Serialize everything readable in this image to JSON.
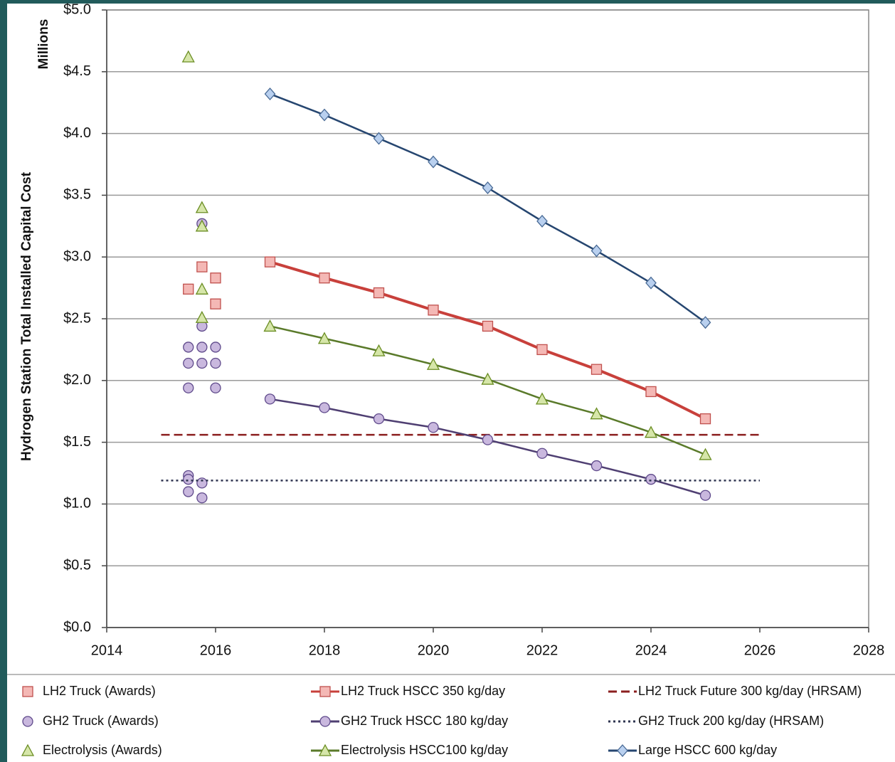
{
  "chart_data": {
    "type": "line",
    "y_label": "Hydrogen Station Total Installed Capital Cost",
    "y_unit": "Millions",
    "xlim": [
      2014,
      2028
    ],
    "xticks": [
      2014,
      2016,
      2018,
      2020,
      2022,
      2024,
      2026,
      2028
    ],
    "ylim": [
      0,
      5
    ],
    "yticks": [
      {
        "value": 0,
        "label": "$0.0"
      },
      {
        "value": 0.5,
        "label": "$0.5"
      },
      {
        "value": 1,
        "label": "$1.0"
      },
      {
        "value": 1.5,
        "label": "$1.5"
      },
      {
        "value": 2,
        "label": "$2.0"
      },
      {
        "value": 2.5,
        "label": "$2.5"
      },
      {
        "value": 3,
        "label": "$3.0"
      },
      {
        "value": 3.5,
        "label": "$3.5"
      },
      {
        "value": 4,
        "label": "$4.0"
      },
      {
        "value": 4.5,
        "label": "$4.5"
      },
      {
        "value": 5,
        "label": "$5.0"
      }
    ],
    "grid": true,
    "legend": "bottom",
    "series": [
      {
        "name": "LH2 Truck (Awards)",
        "line": "none",
        "marker": "square",
        "color": "#f4b8b5",
        "edge": "#c0504d",
        "x": [
          2015.5,
          2015.75,
          2016,
          2016
        ],
        "values": [
          2.74,
          2.92,
          2.83,
          2.62
        ]
      },
      {
        "name": "LH2 Truck HSCC 350 kg/day",
        "line": "solid",
        "marker": "square",
        "color": "#f4b8b5",
        "edge": "#c0504d",
        "line_color": "#c8403b",
        "x": [
          2017,
          2018,
          2019,
          2020,
          2021,
          2022,
          2023,
          2024,
          2025
        ],
        "values": [
          2.96,
          2.83,
          2.71,
          2.57,
          2.44,
          2.25,
          2.09,
          1.91,
          1.69
        ]
      },
      {
        "name": "LH2 Truck Future 300 kg/day (HRSAM)",
        "line": "dashed",
        "marker": "none",
        "line_color": "#8b1f1f",
        "x": [
          2015,
          2026
        ],
        "values": [
          1.56,
          1.56
        ]
      },
      {
        "name": "GH2 Truck (Awards)",
        "line": "none",
        "marker": "circle",
        "color": "#c9b8de",
        "edge": "#5f4a8b",
        "x": [
          2015.5,
          2015.75,
          2016,
          2015.5,
          2015.75,
          2016,
          2015.5,
          2016,
          2015.75,
          2015.75,
          2015.5,
          2015.5,
          2015.75,
          2015.5,
          2015.75
        ],
        "values": [
          2.27,
          2.27,
          2.27,
          2.14,
          2.14,
          2.14,
          1.94,
          1.94,
          2.44,
          3.27,
          1.23,
          1.2,
          1.17,
          1.1,
          1.05
        ]
      },
      {
        "name": "GH2 Truck HSCC 180 kg/day",
        "line": "solid",
        "marker": "circle",
        "color": "#c9b8de",
        "edge": "#5f4a8b",
        "line_color": "#4f3f72",
        "x": [
          2017,
          2018,
          2019,
          2020,
          2021,
          2022,
          2023,
          2024,
          2025
        ],
        "values": [
          1.85,
          1.78,
          1.69,
          1.62,
          1.52,
          1.41,
          1.31,
          1.2,
          1.07
        ]
      },
      {
        "name": "GH2 Truck 200 kg/day (HRSAM)",
        "line": "dotted",
        "marker": "none",
        "line_color": "#2f3550",
        "x": [
          2015,
          2026
        ],
        "values": [
          1.19,
          1.19
        ]
      },
      {
        "name": "Electrolysis (Awards)",
        "line": "none",
        "marker": "triangle",
        "color": "#d6e6a9",
        "edge": "#6b8e23",
        "x": [
          2015.5,
          2015.75,
          2015.75,
          2015.75,
          2015.75
        ],
        "values": [
          4.62,
          3.4,
          3.25,
          2.74,
          2.51
        ]
      },
      {
        "name": "Electrolysis HSCC100 kg/day",
        "line": "solid",
        "marker": "triangle",
        "color": "#d6e6a9",
        "edge": "#6b8e23",
        "line_color": "#5a7a2a",
        "x": [
          2017,
          2018,
          2019,
          2020,
          2021,
          2022,
          2023,
          2024,
          2025
        ],
        "values": [
          2.44,
          2.34,
          2.24,
          2.13,
          2.01,
          1.85,
          1.73,
          1.58,
          1.4
        ]
      },
      {
        "name": "Large HSCC 600 kg/day",
        "line": "solid",
        "marker": "diamond",
        "color": "#b9d0ef",
        "edge": "#4a6b96",
        "line_color": "#264670",
        "x": [
          2017,
          2018,
          2019,
          2020,
          2021,
          2022,
          2023,
          2024,
          2025
        ],
        "values": [
          4.32,
          4.15,
          3.96,
          3.77,
          3.56,
          3.29,
          3.05,
          2.79,
          2.47
        ]
      }
    ]
  }
}
